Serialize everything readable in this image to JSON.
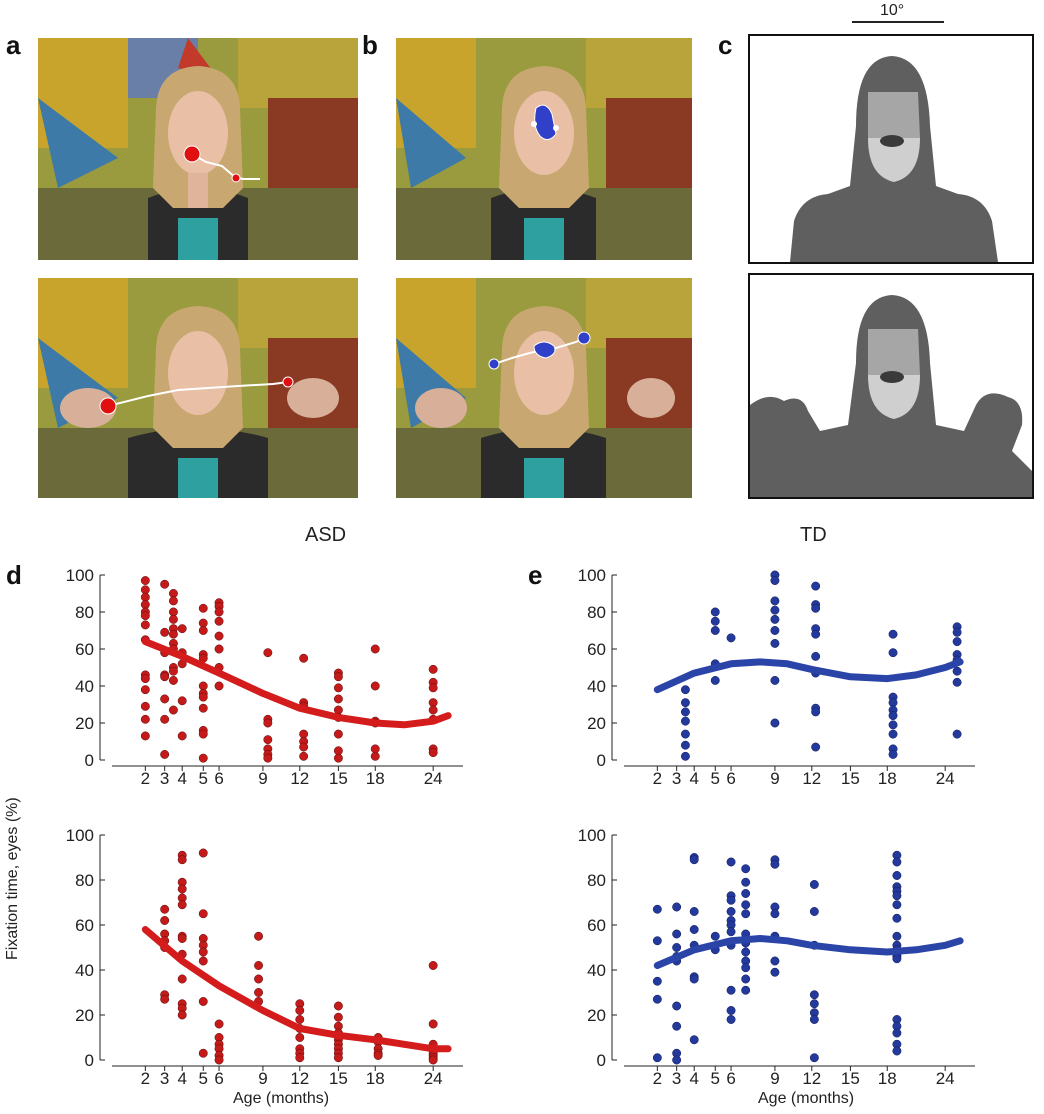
{
  "panel_labels": {
    "a": "a",
    "b": "b",
    "c": "c",
    "d": "d",
    "e": "e"
  },
  "scale_bar": {
    "label": "10°"
  },
  "group_titles": {
    "asd": "ASD",
    "td": "TD"
  },
  "axis_titles": {
    "y": "Fixation time, eyes (%)",
    "x": "Age (months)"
  },
  "colors": {
    "asd": "#d41c1c",
    "asd_point": "#c41a1a",
    "td": "#2a44a8",
    "td_point": "#24399c"
  },
  "chart_data": [
    {
      "id": "asd-top",
      "type": "scatter",
      "group": "ASD",
      "ylim": [
        0,
        100
      ],
      "yticks": [
        0,
        20,
        40,
        60,
        80,
        100
      ],
      "xticks": [
        2,
        3,
        4,
        5,
        6,
        9,
        12,
        15,
        18,
        24
      ],
      "xlim": [
        0,
        27
      ],
      "xlabel": "",
      "ylabel": "Fixation time, eyes (%)",
      "trend": {
        "x": [
          2,
          4,
          6,
          9,
          12,
          15,
          18,
          21,
          24,
          25.5
        ],
        "y": [
          64,
          56,
          47,
          36,
          28,
          23,
          20,
          19,
          21,
          24
        ]
      },
      "points": [
        [
          2,
          97
        ],
        [
          2,
          92
        ],
        [
          2,
          88
        ],
        [
          2,
          84
        ],
        [
          2,
          80
        ],
        [
          2,
          78
        ],
        [
          2,
          73
        ],
        [
          2,
          65
        ],
        [
          2,
          46
        ],
        [
          2,
          44
        ],
        [
          2,
          38
        ],
        [
          2,
          29
        ],
        [
          2,
          22
        ],
        [
          2,
          13
        ],
        [
          3,
          95
        ],
        [
          3,
          69
        ],
        [
          3,
          58
        ],
        [
          3,
          46
        ],
        [
          3,
          45
        ],
        [
          3,
          33
        ],
        [
          3,
          22
        ],
        [
          3,
          3
        ],
        [
          3.5,
          90
        ],
        [
          3.5,
          86
        ],
        [
          3.5,
          80
        ],
        [
          3.5,
          76
        ],
        [
          3.5,
          71
        ],
        [
          3.5,
          68
        ],
        [
          3.5,
          63
        ],
        [
          3.5,
          60
        ],
        [
          3.5,
          50
        ],
        [
          3.5,
          48
        ],
        [
          3.5,
          43
        ],
        [
          3.5,
          27
        ],
        [
          4,
          71
        ],
        [
          4,
          58
        ],
        [
          4,
          52
        ],
        [
          4,
          32
        ],
        [
          4,
          13
        ],
        [
          5,
          82
        ],
        [
          5,
          74
        ],
        [
          5,
          70
        ],
        [
          5,
          57
        ],
        [
          5,
          55
        ],
        [
          5,
          40
        ],
        [
          5,
          36
        ],
        [
          5,
          34
        ],
        [
          5,
          28
        ],
        [
          5,
          16
        ],
        [
          5,
          14
        ],
        [
          5,
          1
        ],
        [
          6,
          85
        ],
        [
          6,
          83
        ],
        [
          6,
          80
        ],
        [
          6,
          75
        ],
        [
          6,
          67
        ],
        [
          6,
          60
        ],
        [
          6,
          50
        ],
        [
          6,
          40
        ],
        [
          9.4,
          58
        ],
        [
          9.4,
          22
        ],
        [
          9.4,
          20
        ],
        [
          9.4,
          11
        ],
        [
          9.4,
          6
        ],
        [
          9.4,
          3
        ],
        [
          9.4,
          1
        ],
        [
          12.3,
          55
        ],
        [
          12.3,
          31
        ],
        [
          12.3,
          29
        ],
        [
          12.3,
          14
        ],
        [
          12.3,
          10
        ],
        [
          12.3,
          7
        ],
        [
          12.3,
          2
        ],
        [
          15,
          47
        ],
        [
          15,
          45
        ],
        [
          15,
          39
        ],
        [
          15,
          33
        ],
        [
          15,
          27
        ],
        [
          15,
          23
        ],
        [
          15,
          14
        ],
        [
          15,
          5
        ],
        [
          15,
          1
        ],
        [
          18,
          60
        ],
        [
          18,
          40
        ],
        [
          18,
          21
        ],
        [
          18,
          20
        ],
        [
          18,
          6
        ],
        [
          18,
          2
        ],
        [
          24,
          49
        ],
        [
          24,
          42
        ],
        [
          24,
          39
        ],
        [
          24,
          31
        ],
        [
          24,
          27
        ],
        [
          24,
          22
        ],
        [
          24,
          6
        ],
        [
          24,
          4
        ]
      ]
    },
    {
      "id": "asd-bottom",
      "type": "scatter",
      "group": "ASD",
      "ylim": [
        0,
        100
      ],
      "yticks": [
        0,
        20,
        40,
        60,
        80,
        100
      ],
      "xticks": [
        2,
        3,
        4,
        5,
        6,
        9,
        12,
        15,
        18,
        24
      ],
      "xlim": [
        0,
        27
      ],
      "xlabel": "Age (months)",
      "ylabel": "Fixation time, eyes (%)",
      "trend": {
        "x": [
          2,
          4,
          6,
          9,
          12,
          15,
          18,
          21,
          24,
          25.5
        ],
        "y": [
          58,
          44,
          33,
          22,
          14,
          11,
          9,
          7,
          5,
          5
        ]
      },
      "points": [
        [
          3,
          67
        ],
        [
          3,
          62
        ],
        [
          3,
          56
        ],
        [
          3,
          53
        ],
        [
          3,
          50
        ],
        [
          3,
          29
        ],
        [
          3,
          27
        ],
        [
          4,
          91
        ],
        [
          4,
          89
        ],
        [
          4,
          79
        ],
        [
          4,
          76
        ],
        [
          4,
          72
        ],
        [
          4,
          69
        ],
        [
          4,
          55
        ],
        [
          4,
          54
        ],
        [
          4,
          47
        ],
        [
          4,
          36
        ],
        [
          4,
          25
        ],
        [
          4,
          23
        ],
        [
          4,
          20
        ],
        [
          5,
          92
        ],
        [
          5,
          65
        ],
        [
          5,
          54
        ],
        [
          5,
          51
        ],
        [
          5,
          48
        ],
        [
          5,
          44
        ],
        [
          5,
          26
        ],
        [
          5,
          3
        ],
        [
          6,
          16
        ],
        [
          6,
          10
        ],
        [
          6,
          7
        ],
        [
          6,
          5
        ],
        [
          6,
          2
        ],
        [
          6,
          0
        ],
        [
          8.7,
          55
        ],
        [
          8.7,
          42
        ],
        [
          8.7,
          36
        ],
        [
          8.7,
          30
        ],
        [
          8.7,
          26
        ],
        [
          12,
          25
        ],
        [
          12,
          22
        ],
        [
          12,
          18
        ],
        [
          12,
          14
        ],
        [
          12,
          10
        ],
        [
          12,
          5
        ],
        [
          12,
          3
        ],
        [
          12,
          1
        ],
        [
          15,
          24
        ],
        [
          15,
          19
        ],
        [
          15,
          15
        ],
        [
          15,
          12
        ],
        [
          15,
          9
        ],
        [
          15,
          7
        ],
        [
          15,
          5
        ],
        [
          15,
          3
        ],
        [
          15,
          1
        ],
        [
          18.3,
          10
        ],
        [
          18.3,
          8
        ],
        [
          18.3,
          5
        ],
        [
          18.3,
          3
        ],
        [
          18.3,
          2
        ],
        [
          24,
          42
        ],
        [
          24,
          16
        ],
        [
          24,
          7
        ],
        [
          24,
          3
        ],
        [
          24,
          2
        ],
        [
          24,
          1
        ],
        [
          24,
          0
        ]
      ]
    },
    {
      "id": "td-top",
      "type": "scatter",
      "group": "TD",
      "ylim": [
        0,
        100
      ],
      "yticks": [
        0,
        20,
        40,
        60,
        80,
        100
      ],
      "xticks": [
        2,
        3,
        4,
        5,
        6,
        9,
        12,
        15,
        18,
        24
      ],
      "xlim": [
        0,
        27
      ],
      "xlabel": "",
      "ylabel": "Fixation time, eyes (%)",
      "trend": {
        "x": [
          2,
          4,
          6,
          8,
          10,
          12,
          15,
          18,
          21,
          24,
          25.5
        ],
        "y": [
          38,
          47,
          52,
          53,
          52,
          49,
          45,
          44,
          46,
          50,
          53
        ]
      },
      "points": [
        [
          3.5,
          38
        ],
        [
          3.5,
          31
        ],
        [
          3.5,
          26
        ],
        [
          3.5,
          21
        ],
        [
          3.5,
          14
        ],
        [
          3.5,
          8
        ],
        [
          3.5,
          2
        ],
        [
          5,
          80
        ],
        [
          5,
          75
        ],
        [
          5,
          70
        ],
        [
          5,
          52
        ],
        [
          5,
          43
        ],
        [
          6,
          66
        ],
        [
          9,
          100
        ],
        [
          9,
          97
        ],
        [
          9,
          86
        ],
        [
          9,
          81
        ],
        [
          9,
          76
        ],
        [
          9,
          70
        ],
        [
          9,
          63
        ],
        [
          9,
          43
        ],
        [
          9,
          20
        ],
        [
          12.3,
          94
        ],
        [
          12.3,
          84
        ],
        [
          12.3,
          82
        ],
        [
          12.3,
          71
        ],
        [
          12.3,
          68
        ],
        [
          12.3,
          56
        ],
        [
          12.3,
          47
        ],
        [
          12.3,
          28
        ],
        [
          12.3,
          26
        ],
        [
          12.3,
          7
        ],
        [
          18.6,
          68
        ],
        [
          18.6,
          58
        ],
        [
          18.6,
          34
        ],
        [
          18.6,
          31
        ],
        [
          18.6,
          27
        ],
        [
          18.6,
          24
        ],
        [
          18.6,
          19
        ],
        [
          18.6,
          14
        ],
        [
          18.6,
          6
        ],
        [
          18.6,
          3
        ],
        [
          25.2,
          72
        ],
        [
          25.2,
          69
        ],
        [
          25.2,
          64
        ],
        [
          25.2,
          57
        ],
        [
          25.2,
          54
        ],
        [
          25.2,
          48
        ],
        [
          25.2,
          42
        ],
        [
          25.2,
          14
        ]
      ]
    },
    {
      "id": "td-bottom",
      "type": "scatter",
      "group": "TD",
      "ylim": [
        0,
        100
      ],
      "yticks": [
        0,
        20,
        40,
        60,
        80,
        100
      ],
      "xticks": [
        2,
        3,
        4,
        5,
        6,
        9,
        12,
        15,
        18,
        24
      ],
      "xlim": [
        0,
        27
      ],
      "xlabel": "Age (months)",
      "ylabel": "Fixation time, eyes (%)",
      "trend": {
        "x": [
          2,
          4,
          6,
          8,
          10,
          12,
          15,
          18,
          21,
          24,
          25.5
        ],
        "y": [
          42,
          49,
          53,
          54,
          53,
          51,
          49,
          48,
          49,
          51,
          53
        ]
      },
      "points": [
        [
          2,
          67
        ],
        [
          2,
          53
        ],
        [
          2,
          35
        ],
        [
          2,
          27
        ],
        [
          2,
          1
        ],
        [
          3,
          68
        ],
        [
          3,
          56
        ],
        [
          3,
          50
        ],
        [
          3,
          46
        ],
        [
          3,
          44
        ],
        [
          3,
          24
        ],
        [
          3,
          15
        ],
        [
          3,
          3
        ],
        [
          3,
          0
        ],
        [
          4,
          90
        ],
        [
          4,
          89
        ],
        [
          4,
          66
        ],
        [
          4,
          58
        ],
        [
          4,
          51
        ],
        [
          4,
          37
        ],
        [
          4,
          36
        ],
        [
          4,
          9
        ],
        [
          5,
          55
        ],
        [
          5,
          49
        ],
        [
          6,
          88
        ],
        [
          6,
          73
        ],
        [
          6,
          71
        ],
        [
          6,
          66
        ],
        [
          6,
          62
        ],
        [
          6,
          60
        ],
        [
          6,
          57
        ],
        [
          6,
          51
        ],
        [
          6,
          31
        ],
        [
          6,
          22
        ],
        [
          6,
          18
        ],
        [
          7,
          85
        ],
        [
          7,
          79
        ],
        [
          7,
          74
        ],
        [
          7,
          69
        ],
        [
          7,
          65
        ],
        [
          7,
          56
        ],
        [
          7,
          52
        ],
        [
          7,
          48
        ],
        [
          7,
          44
        ],
        [
          7,
          41
        ],
        [
          7,
          36
        ],
        [
          7,
          31
        ],
        [
          9,
          89
        ],
        [
          9,
          87
        ],
        [
          9,
          68
        ],
        [
          9,
          65
        ],
        [
          9,
          55
        ],
        [
          9,
          44
        ],
        [
          9,
          39
        ],
        [
          12.2,
          78
        ],
        [
          12.2,
          66
        ],
        [
          12.2,
          51
        ],
        [
          12.2,
          29
        ],
        [
          12.2,
          25
        ],
        [
          12.2,
          21
        ],
        [
          12.2,
          18
        ],
        [
          12.2,
          1
        ],
        [
          19,
          91
        ],
        [
          19,
          88
        ],
        [
          19,
          82
        ],
        [
          19,
          77
        ],
        [
          19,
          75
        ],
        [
          19,
          73
        ],
        [
          19,
          69
        ],
        [
          19,
          63
        ],
        [
          19,
          55
        ],
        [
          19,
          51
        ],
        [
          19,
          49
        ],
        [
          19,
          47
        ],
        [
          19,
          46
        ],
        [
          19,
          45
        ],
        [
          19,
          18
        ],
        [
          19,
          15
        ],
        [
          19,
          12
        ],
        [
          19,
          7
        ],
        [
          19,
          4
        ]
      ]
    }
  ]
}
